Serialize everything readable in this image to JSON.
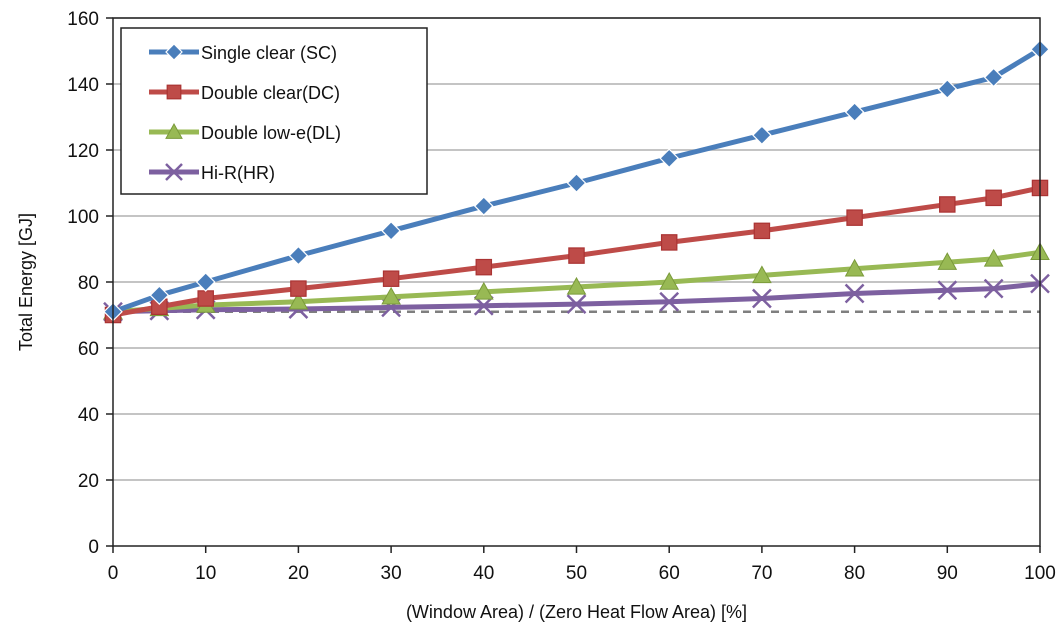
{
  "chart_data": {
    "type": "line",
    "xlabel": "(Window Area) / (Zero Heat Flow Area) [%]",
    "ylabel": "Total Energy [GJ]",
    "xlim": [
      0,
      100
    ],
    "ylim": [
      0,
      160
    ],
    "x_ticks": [
      0,
      10,
      20,
      30,
      40,
      50,
      60,
      70,
      80,
      90,
      100
    ],
    "y_ticks": [
      0,
      20,
      40,
      60,
      80,
      100,
      120,
      140,
      160
    ],
    "grid": "horizontal",
    "legend_position": "top-left",
    "x": [
      0,
      5,
      10,
      20,
      30,
      40,
      50,
      60,
      70,
      80,
      90,
      95,
      100
    ],
    "series": [
      {
        "name": "Single clear (SC)",
        "marker": "diamond",
        "color": "#4a7ebb",
        "values": [
          71,
          76,
          80,
          88,
          95.5,
          103,
          110,
          117.5,
          124.5,
          131.5,
          138.5,
          142,
          150.5
        ]
      },
      {
        "name": "Double clear(DC)",
        "marker": "square",
        "color": "#be4b48",
        "values": [
          70,
          72.5,
          75,
          78,
          81,
          84.5,
          88,
          92,
          95.5,
          99.5,
          103.5,
          105.5,
          108.5
        ]
      },
      {
        "name": "Double low-e(DL)",
        "marker": "triangle",
        "color": "#98b954",
        "values": [
          71,
          72,
          73,
          74,
          75.5,
          77,
          78.5,
          80,
          82,
          84,
          86,
          87,
          89
        ]
      },
      {
        "name": "Hi-R(HR)",
        "marker": "x",
        "color": "#7d60a0",
        "values": [
          71,
          71.3,
          71.6,
          71.8,
          72.3,
          72.8,
          73.3,
          74,
          75,
          76.5,
          77.5,
          78,
          79.5
        ]
      }
    ],
    "reference_line": {
      "y": 71,
      "style": "dashed",
      "color": "#7f7f7f"
    }
  }
}
